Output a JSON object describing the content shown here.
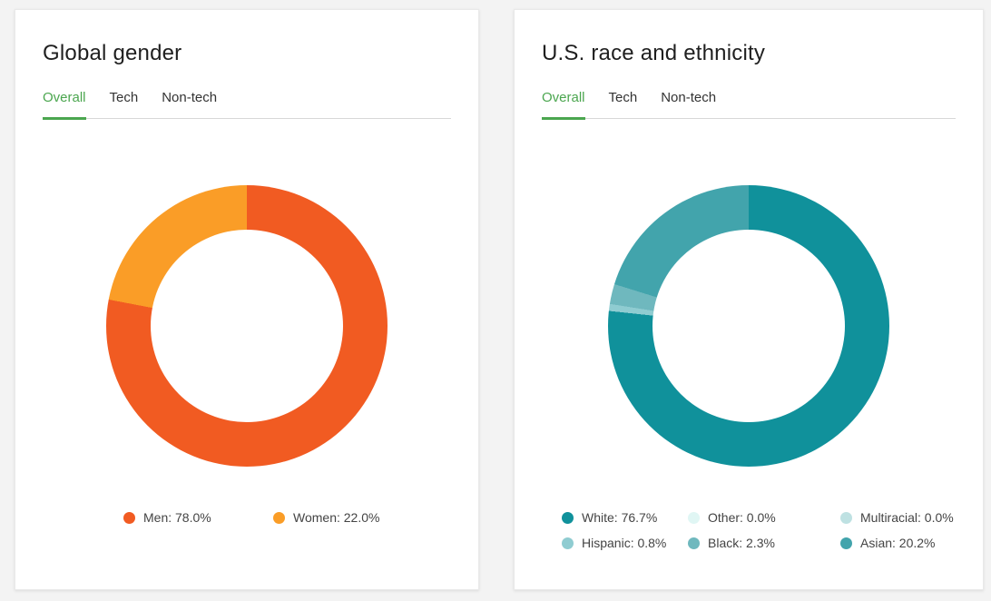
{
  "accent": {
    "green": "#4ba64f",
    "tab_divider": "#d8d8d8"
  },
  "page_background": "#f3f3f3",
  "cards": [
    {
      "title": "Global gender",
      "tabs": [
        {
          "label": "Overall",
          "active": true
        },
        {
          "label": "Tech",
          "active": false
        },
        {
          "label": "Non-tech",
          "active": false
        }
      ],
      "legend": [
        {
          "label": "Men: 78.0%",
          "color": "#f15b22"
        },
        {
          "label": "Women: 22.0%",
          "color": "#fa9d27"
        }
      ]
    },
    {
      "title": "U.S. race and ethnicity",
      "tabs": [
        {
          "label": "Overall",
          "active": true
        },
        {
          "label": "Tech",
          "active": false
        },
        {
          "label": "Non-tech",
          "active": false
        }
      ],
      "legend": [
        {
          "label": "White: 76.7%",
          "color": "#10919b"
        },
        {
          "label": "Other: 0.0%",
          "color": "#e0f6f4"
        },
        {
          "label": "Multiracial: 0.0%",
          "color": "#bee1e2"
        },
        {
          "label": "Hispanic: 0.8%",
          "color": "#8fccd1"
        },
        {
          "label": "Black: 2.3%",
          "color": "#6fb8be"
        },
        {
          "label": "Asian: 20.2%",
          "color": "#42a4ac"
        }
      ]
    }
  ],
  "chart_data": [
    {
      "type": "pie",
      "subtype": "donut",
      "title": "Global gender",
      "active_tab": "Overall",
      "labels": [
        "Men",
        "Women"
      ],
      "values": [
        78.0,
        22.0
      ],
      "unit": "%",
      "colors": [
        "#f15b22",
        "#fa9d27"
      ],
      "start_angle_deg": 0,
      "direction": "clockwise",
      "legend_position": "bottom"
    },
    {
      "type": "pie",
      "subtype": "donut",
      "title": "U.S. race and ethnicity",
      "active_tab": "Overall",
      "labels": [
        "White",
        "Other",
        "Multiracial",
        "Hispanic",
        "Black",
        "Asian"
      ],
      "values": [
        76.7,
        0.0,
        0.0,
        0.8,
        2.3,
        20.2
      ],
      "unit": "%",
      "colors": [
        "#10919b",
        "#e0f6f4",
        "#bee1e2",
        "#8fccd1",
        "#6fb8be",
        "#42a4ac"
      ],
      "start_angle_deg": 0,
      "direction": "clockwise",
      "legend_position": "bottom"
    }
  ]
}
